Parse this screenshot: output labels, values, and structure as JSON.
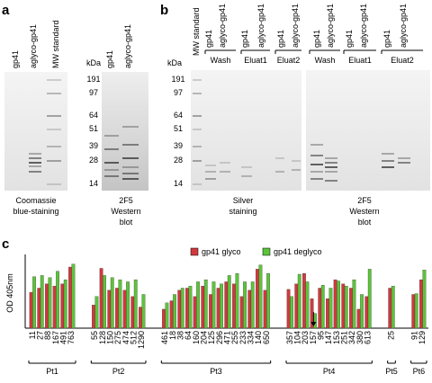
{
  "panel_a": {
    "letter": "a",
    "lanes_left": [
      "gp41",
      "aglyco-gp41",
      "MW standard"
    ],
    "kda": "kDa",
    "lanes_right": [
      "gp41",
      "aglyco-gp41"
    ],
    "markers": [
      "191",
      "97",
      "64",
      "51",
      "39",
      "28",
      "14"
    ],
    "caption_left": [
      "Coomassie",
      "blue-staining"
    ],
    "caption_right": [
      "2F5",
      "Western",
      "blot"
    ]
  },
  "panel_b": {
    "letter": "b",
    "lanes_left": [
      "MW standard",
      "gp41",
      "aglyco-gp41",
      "gp41",
      "aglyco-gp41",
      "gp41",
      "aglyco-gp41"
    ],
    "brackets_left": [
      "Wash",
      "Eluat1",
      "Eluat2"
    ],
    "kda": "kDa",
    "markers": [
      "191",
      "97",
      "64",
      "51",
      "39",
      "28",
      "14"
    ],
    "lanes_right": [
      "gp41",
      "aglyco-gp41",
      "gp41",
      "aglyco-gp41",
      "gp41",
      "aglyco-gp41"
    ],
    "brackets_right": [
      "Wash",
      "Eluat1",
      "Eluat2"
    ],
    "caption_left": [
      "Silver",
      "staining"
    ],
    "caption_right": [
      "2F5",
      "Western",
      "blot"
    ]
  },
  "chart_data": {
    "type": "bar",
    "letter": "c",
    "y_label": "OD 405nm",
    "ylim": [
      0,
      1.6
    ],
    "groups": [
      {
        "name": "Pt1",
        "categories": [
          "11",
          "27",
          "88",
          "167",
          "491",
          "763"
        ]
      },
      {
        "name": "Pt2",
        "categories": [
          "55",
          "128",
          "150",
          "275",
          "474",
          "512",
          "1290"
        ]
      },
      {
        "name": "Pt3",
        "categories": [
          "461",
          "18",
          "38",
          "64",
          "160",
          "204",
          "125",
          "296",
          "471",
          "255",
          "233",
          "334",
          "140",
          "650"
        ]
      },
      {
        "name": "Pt4",
        "categories": [
          "357",
          "104",
          "203",
          "157",
          "95",
          "147",
          "153",
          "251",
          "342",
          "380",
          "613"
        ]
      },
      {
        "name": "Pt5",
        "categories": [
          "25"
        ]
      },
      {
        "name": "Pt6",
        "categories": [
          "91",
          "129"
        ]
      }
    ],
    "series": [
      {
        "name": "gp41 glyco",
        "color": "#d0393e",
        "values": [
          [
            0.85,
            0.95,
            1.05,
            1.0,
            1.05,
            1.45
          ],
          [
            0.55,
            1.42,
            0.9,
            0.95,
            0.9,
            0.75,
            0.5
          ],
          [
            0.45,
            0.65,
            0.9,
            0.95,
            0.75,
            1.0,
            0.8,
            0.95,
            1.1,
            1.05,
            0.75,
            0.9,
            1.4,
            0.9
          ],
          [
            0.92,
            1.05,
            1.3,
            0.7,
            0.95,
            0.7,
            1.15,
            1.05,
            0.95,
            0.45,
            0.75
          ],
          [
            0.95
          ],
          [
            0.8,
            1.15
          ]
        ]
      },
      {
        "name": "gp41 deglyco",
        "color": "#5cc43a",
        "values": [
          [
            1.22,
            1.25,
            1.2,
            1.35,
            1.15,
            1.52
          ],
          [
            0.75,
            1.25,
            1.2,
            1.15,
            1.1,
            1.15,
            0.8
          ],
          [
            0.6,
            0.8,
            0.95,
            1.0,
            1.1,
            1.15,
            1.1,
            1.05,
            1.25,
            1.3,
            1.1,
            1.1,
            1.5,
            1.3
          ],
          [
            0.75,
            1.28,
            1.1,
            0.35,
            1.02,
            0.95,
            1.12,
            1.0,
            1.15,
            0.8,
            1.4
          ],
          [
            1.0
          ],
          [
            0.82,
            1.38
          ]
        ]
      }
    ]
  }
}
